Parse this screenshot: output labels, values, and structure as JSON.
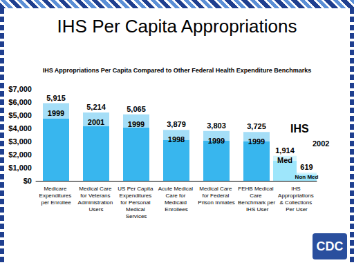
{
  "chart_data": {
    "type": "bar",
    "title": "IHS Per Capita Appropriations",
    "subtitle": "IHS Appropriations Per Capita Compared to Other Federal Health Expenditure Benchmarks",
    "categories": [
      "Medicare Expenditures per Enrollee",
      "Medical Care for Veterans Administration Users",
      "US Per Capita Expenditures for Personal Medical Services",
      "Acute Medical Care for Medicaid Enrollees",
      "Medical Care for Federal Prison Inmates",
      "FEHB Medical Care Benchmark per IHS User",
      "IHS Appropriations & Collections Per User"
    ],
    "series": [
      {
        "color": "#38b6ee",
        "values": [
          5915,
          5214,
          5065,
          3879,
          3803,
          3725,
          null
        ],
        "value_labels": [
          "5,915",
          "5,214",
          "5,065",
          "3,879",
          "3,803",
          "3,725",
          null
        ],
        "inner_labels": [
          "1999",
          "2001",
          "1999",
          "1998",
          "1999",
          "1999",
          null
        ]
      },
      {
        "color": "#9ee6fb",
        "values": [
          null,
          null,
          null,
          null,
          null,
          null,
          1914
        ],
        "value_labels": [
          null,
          null,
          null,
          null,
          null,
          null,
          "1,914"
        ],
        "inner_labels": [
          null,
          null,
          null,
          null,
          null,
          null,
          "Med"
        ]
      },
      {
        "color": "#9ee6fb",
        "values": [
          null,
          null,
          null,
          null,
          null,
          null,
          619
        ],
        "value_labels": [
          null,
          null,
          null,
          null,
          null,
          null,
          "619"
        ],
        "inner_labels": [
          null,
          null,
          null,
          null,
          null,
          null,
          "Non Med"
        ]
      }
    ],
    "ylim": [
      0,
      7000
    ],
    "yticks": [
      {
        "value": 0,
        "label": "$0"
      },
      {
        "value": 1000,
        "label": "$1,000"
      },
      {
        "value": 2000,
        "label": "$2,000"
      },
      {
        "value": 3000,
        "label": "$3,000"
      },
      {
        "value": 4000,
        "label": "$4,000"
      },
      {
        "value": 5000,
        "label": "$5,000"
      },
      {
        "value": 6000,
        "label": "$6,000"
      },
      {
        "value": 7000,
        "label": "$7,000"
      }
    ],
    "grid": false,
    "data_labels": true,
    "annotations": [
      {
        "text": "IHS"
      },
      {
        "text": "2002"
      }
    ],
    "logo": "CDC"
  }
}
